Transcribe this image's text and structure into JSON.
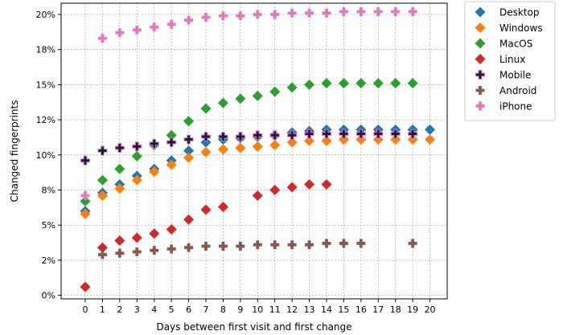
{
  "chart_data": {
    "type": "scatter",
    "xlabel": "Days between first visit and first change",
    "ylabel": "Changed fingerprints",
    "xlim": [
      -1.4,
      21.0
    ],
    "ylim": [
      -0.25,
      20.8
    ],
    "x_ticks": [
      0,
      1,
      2,
      3,
      4,
      5,
      6,
      7,
      8,
      9,
      10,
      11,
      12,
      13,
      14,
      15,
      16,
      17,
      18,
      19,
      20
    ],
    "y_ticks": [
      0,
      2.5,
      5,
      7.5,
      10,
      12.5,
      15,
      17.5,
      20
    ],
    "y_tick_labels": [
      "0%",
      "2%",
      "5%",
      "8%",
      "10%",
      "12%",
      "15%",
      "18%",
      "20%"
    ],
    "grid": true,
    "legend_position": "outside-right-top",
    "series": [
      {
        "name": "Desktop",
        "color": "#1f77b4",
        "marker": "diamond",
        "x": [
          0,
          1,
          2,
          3,
          4,
          5,
          6,
          7,
          8,
          9,
          10,
          11,
          12,
          13,
          14,
          15,
          16,
          17,
          18,
          19,
          20
        ],
        "y": [
          6.0,
          7.3,
          7.9,
          8.5,
          9.0,
          9.6,
          10.3,
          10.9,
          11.1,
          11.2,
          11.3,
          11.4,
          11.6,
          11.7,
          11.8,
          11.8,
          11.8,
          11.8,
          11.8,
          11.8,
          11.8
        ]
      },
      {
        "name": "Windows",
        "color": "#ff7f0e",
        "marker": "diamond",
        "x": [
          0,
          1,
          2,
          3,
          4,
          5,
          6,
          7,
          8,
          9,
          10,
          11,
          12,
          13,
          14,
          15,
          16,
          17,
          18,
          19,
          20
        ],
        "y": [
          5.8,
          7.1,
          7.6,
          8.2,
          8.8,
          9.3,
          9.8,
          10.2,
          10.4,
          10.5,
          10.6,
          10.7,
          10.9,
          11.0,
          11.0,
          11.1,
          11.1,
          11.1,
          11.1,
          11.1,
          11.1
        ]
      },
      {
        "name": "MacOS",
        "color": "#2ca02c",
        "marker": "diamond",
        "x": [
          0,
          1,
          2,
          3,
          4,
          5,
          6,
          7,
          8,
          9,
          10,
          11,
          12,
          13,
          14,
          15,
          16,
          17,
          18,
          19
        ],
        "y": [
          6.7,
          8.2,
          9.0,
          9.9,
          10.7,
          11.4,
          12.4,
          13.3,
          13.7,
          14.0,
          14.2,
          14.5,
          14.8,
          15.0,
          15.1,
          15.1,
          15.1,
          15.1,
          15.1,
          15.1
        ]
      },
      {
        "name": "Linux",
        "color": "#d62728",
        "marker": "diamond",
        "x": [
          0,
          1,
          2,
          3,
          4,
          5,
          6,
          7,
          8,
          10,
          11,
          12,
          13,
          14
        ],
        "y": [
          0.6,
          3.4,
          3.9,
          4.1,
          4.4,
          4.7,
          5.4,
          6.1,
          6.3,
          7.1,
          7.5,
          7.7,
          7.9,
          7.9
        ]
      },
      {
        "name": "Mobile",
        "color": "#1b1b3a",
        "marker": "plus",
        "edge": "#e377c2",
        "x": [
          0,
          1,
          2,
          3,
          4,
          5,
          6,
          7,
          8,
          9,
          10,
          11,
          12,
          13,
          14,
          15,
          16,
          17,
          18,
          19
        ],
        "y": [
          9.6,
          10.3,
          10.5,
          10.6,
          10.8,
          10.9,
          11.1,
          11.3,
          11.3,
          11.3,
          11.4,
          11.4,
          11.4,
          11.5,
          11.5,
          11.5,
          11.5,
          11.5,
          11.5,
          11.5
        ]
      },
      {
        "name": "Android",
        "color": "#8c564b",
        "marker": "plus",
        "x": [
          1,
          2,
          3,
          4,
          5,
          6,
          7,
          8,
          9,
          10,
          11,
          12,
          13,
          14,
          15,
          16,
          19
        ],
        "y": [
          2.9,
          3.0,
          3.1,
          3.2,
          3.3,
          3.4,
          3.5,
          3.5,
          3.5,
          3.6,
          3.6,
          3.6,
          3.6,
          3.7,
          3.7,
          3.7,
          3.7
        ]
      },
      {
        "name": "iPhone",
        "color": "#e377c2",
        "marker": "plus",
        "x": [
          0,
          1,
          2,
          3,
          4,
          5,
          6,
          7,
          8,
          9,
          10,
          11,
          12,
          13,
          14,
          15,
          16,
          17,
          18,
          19
        ],
        "y": [
          7.1,
          18.3,
          18.7,
          18.9,
          19.1,
          19.3,
          19.6,
          19.8,
          19.9,
          19.9,
          20.0,
          20.0,
          20.1,
          20.1,
          20.1,
          20.2,
          20.2,
          20.2,
          20.2,
          20.2
        ]
      }
    ]
  }
}
